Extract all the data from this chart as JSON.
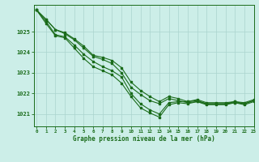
{
  "title": "Graphe pression niveau de la mer (hPa)",
  "bg_color": "#cceee8",
  "line_color": "#1a6b1a",
  "grid_color": "#aad4ce",
  "ylim": [
    1020.4,
    1026.3
  ],
  "xlim": [
    -0.3,
    23
  ],
  "yticks": [
    1021,
    1022,
    1023,
    1024,
    1025
  ],
  "xticks": [
    0,
    1,
    2,
    3,
    4,
    5,
    6,
    7,
    8,
    9,
    10,
    11,
    12,
    13,
    14,
    15,
    16,
    17,
    18,
    19,
    20,
    21,
    22,
    23
  ],
  "series": [
    [
      1026.05,
      1025.6,
      1025.1,
      1024.95,
      1024.65,
      1024.3,
      1023.85,
      1023.75,
      1023.6,
      1023.25,
      1022.55,
      1022.15,
      1021.85,
      1021.6,
      1021.85,
      1021.75,
      1021.6,
      1021.7,
      1021.55,
      1021.55,
      1021.55,
      1021.6,
      1021.55,
      1021.7
    ],
    [
      1026.05,
      1025.6,
      1025.1,
      1024.9,
      1024.6,
      1024.2,
      1023.8,
      1023.65,
      1023.45,
      1023.0,
      1022.3,
      1021.95,
      1021.65,
      1021.5,
      1021.75,
      1021.65,
      1021.55,
      1021.6,
      1021.5,
      1021.5,
      1021.5,
      1021.55,
      1021.5,
      1021.65
    ],
    [
      1026.05,
      1025.5,
      1024.85,
      1024.75,
      1024.35,
      1023.9,
      1023.55,
      1023.3,
      1023.1,
      1022.8,
      1022.0,
      1021.5,
      1021.2,
      1021.0,
      1021.55,
      1021.6,
      1021.6,
      1021.65,
      1021.5,
      1021.5,
      1021.5,
      1021.6,
      1021.5,
      1021.65
    ],
    [
      1026.05,
      1025.4,
      1024.8,
      1024.7,
      1024.2,
      1023.7,
      1023.3,
      1023.1,
      1022.9,
      1022.5,
      1021.85,
      1021.3,
      1021.05,
      1020.85,
      1021.45,
      1021.55,
      1021.5,
      1021.6,
      1021.45,
      1021.45,
      1021.45,
      1021.55,
      1021.45,
      1021.6
    ]
  ]
}
